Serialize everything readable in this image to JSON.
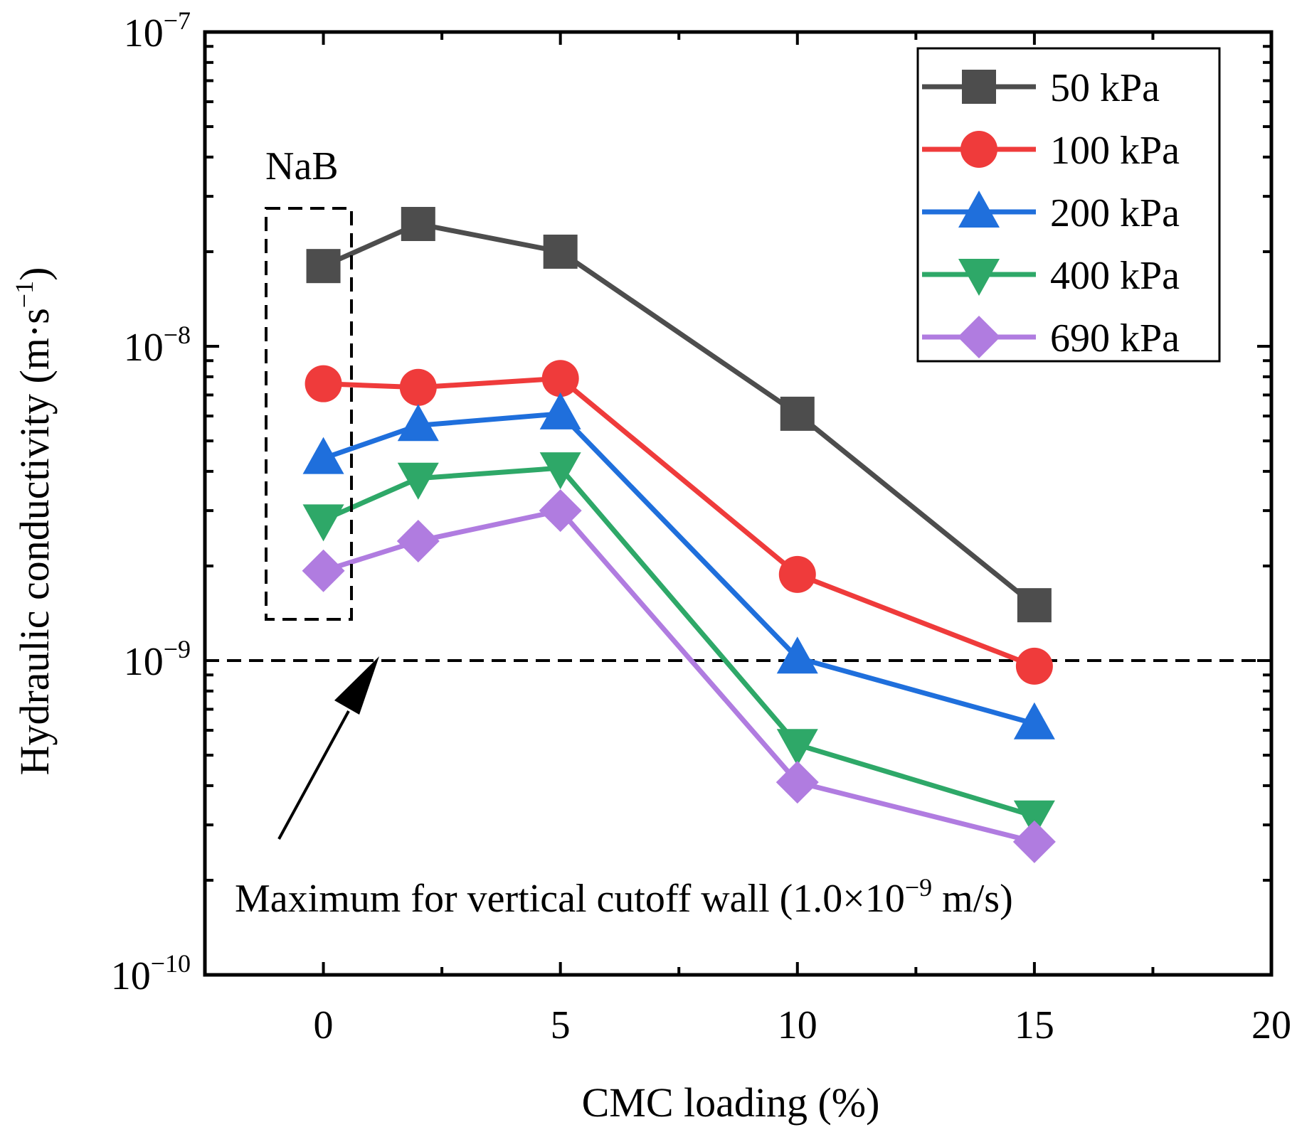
{
  "chart_data": {
    "type": "line",
    "title": "",
    "xlabel": "CMC loading (%)",
    "ylabel": "Hydraulic conductivity (m·s",
    "ylabel_sup": "−1",
    "ylabel_end": ")",
    "xlim": [
      -2.5,
      20
    ],
    "ylim": [
      1e-10,
      1e-07
    ],
    "yscale": "log",
    "xticks": [
      0,
      5,
      10,
      15,
      20
    ],
    "yticks": [
      {
        "value": 1e-07,
        "base": "10",
        "exp": "−7"
      },
      {
        "value": 1e-08,
        "base": "10",
        "exp": "−8"
      },
      {
        "value": 1e-09,
        "base": "10",
        "exp": "−9"
      },
      {
        "value": 1e-10,
        "base": "10",
        "exp": "−10"
      }
    ],
    "legend_position": "top-right",
    "series": [
      {
        "name": "50 kPa",
        "color": "#4d4d4d",
        "marker": "square",
        "x": [
          0,
          2,
          5,
          10,
          15
        ],
        "values": [
          1.8e-08,
          2.45e-08,
          2e-08,
          6.1e-09,
          1.5e-09
        ]
      },
      {
        "name": "100 kPa",
        "color": "#ef3b3b",
        "marker": "circle",
        "x": [
          0,
          2,
          5,
          10,
          15
        ],
        "values": [
          7.6e-09,
          7.4e-09,
          7.9e-09,
          1.88e-09,
          9.6e-10
        ]
      },
      {
        "name": "200 kPa",
        "color": "#1f6fdc",
        "marker": "triangle-up",
        "x": [
          0,
          2,
          5,
          10,
          15
        ],
        "values": [
          4.4e-09,
          5.6e-09,
          6.1e-09,
          1.02e-09,
          6.3e-10
        ]
      },
      {
        "name": "400 kPa",
        "color": "#2ea868",
        "marker": "triangle-down",
        "x": [
          0,
          2,
          5,
          10,
          15
        ],
        "values": [
          2.8e-09,
          3.8e-09,
          4.1e-09,
          5.4e-10,
          3.2e-10
        ]
      },
      {
        "name": "690 kPa",
        "color": "#b07ce0",
        "marker": "diamond",
        "x": [
          0,
          2,
          5,
          10,
          15
        ],
        "values": [
          1.93e-09,
          2.4e-09,
          3e-09,
          4.1e-10,
          2.65e-10
        ]
      }
    ],
    "annotations": {
      "box_label": "NaB",
      "threshold_value": 1e-09,
      "threshold_text": "Maximum for vertical cutoff wall (1.0×10",
      "threshold_sup": "−9",
      "threshold_text_end": " m/s)"
    }
  }
}
